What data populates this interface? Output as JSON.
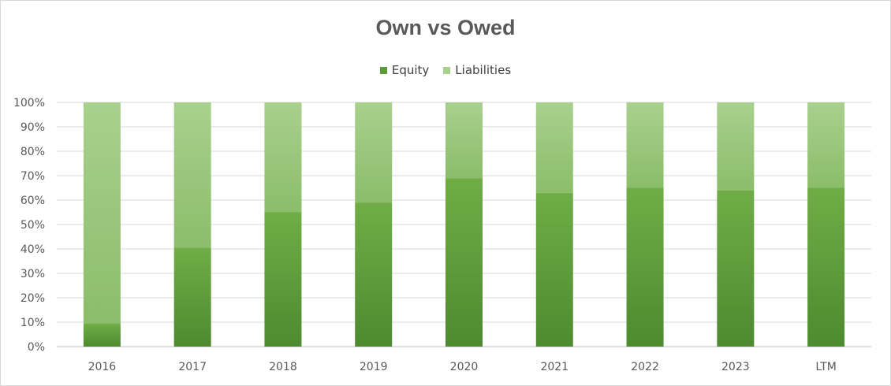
{
  "chart_data": {
    "type": "bar",
    "stacked": true,
    "title": "Own vs Owed",
    "categories": [
      "2016",
      "2017",
      "2018",
      "2019",
      "2020",
      "2021",
      "2022",
      "2023",
      "LTM"
    ],
    "series": [
      {
        "name": "Equity",
        "color": "#5b9b3a",
        "values": [
          9.5,
          40.5,
          55,
          59,
          69,
          63,
          65,
          64,
          65
        ]
      },
      {
        "name": "Liabilities",
        "color": "#a9d08e",
        "values": [
          90.5,
          59.5,
          45,
          41,
          31,
          37,
          35,
          36,
          35
        ]
      }
    ],
    "y_ticks": [
      "0%",
      "10%",
      "20%",
      "30%",
      "40%",
      "50%",
      "60%",
      "70%",
      "80%",
      "90%",
      "100%"
    ],
    "ylim": [
      0,
      100
    ],
    "grid": true,
    "legend_position": "top"
  }
}
